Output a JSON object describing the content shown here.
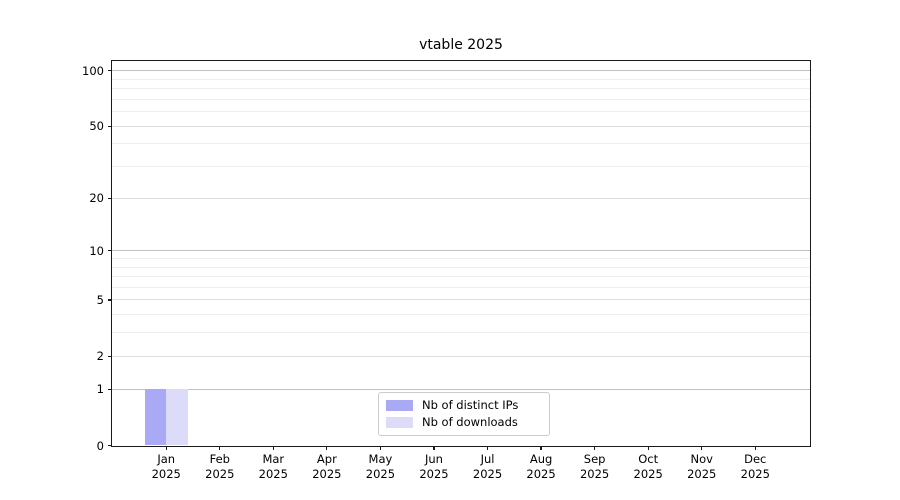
{
  "title": "vtable 2025",
  "chart_data": {
    "type": "bar",
    "title": "vtable 2025",
    "yscale": "log1p",
    "grid": true,
    "ylim": [
      0,
      113.4
    ],
    "y_ticks": [
      100,
      50,
      20,
      10,
      5,
      2,
      1,
      0
    ],
    "y_tick_labels": [
      "100",
      "50",
      "20",
      "10",
      "5",
      "2",
      "1",
      "0"
    ],
    "y_minor_gridlines": [
      3,
      4,
      6,
      7,
      8,
      9,
      30,
      40,
      60,
      70,
      80,
      90
    ],
    "y_emphasized_gridlines": [
      1,
      10,
      100
    ],
    "months": [
      "Jan",
      "Feb",
      "Mar",
      "Apr",
      "May",
      "Jun",
      "Jul",
      "Aug",
      "Sep",
      "Oct",
      "Nov",
      "Dec"
    ],
    "year": "2025",
    "series": [
      {
        "name": "Nb of distinct IPs",
        "color": "#a9a9f5",
        "values": [
          1,
          0,
          0,
          0,
          0,
          0,
          0,
          0,
          0,
          0,
          0,
          0
        ]
      },
      {
        "name": "Nb of downloads",
        "color": "#dcdcf8",
        "values": [
          1,
          0,
          0,
          0,
          0,
          0,
          0,
          0,
          0,
          0,
          0,
          0
        ]
      }
    ],
    "legend": {
      "position": "bottom-center-inside",
      "entries": [
        "Nb of distinct IPs",
        "Nb of downloads"
      ]
    },
    "colors": {
      "spine": "#1a1a1a",
      "grid_major": "#dedede",
      "grid_emphasis": "#c0c0c0",
      "grid_minor": "#efefef",
      "background": "#ffffff"
    }
  }
}
